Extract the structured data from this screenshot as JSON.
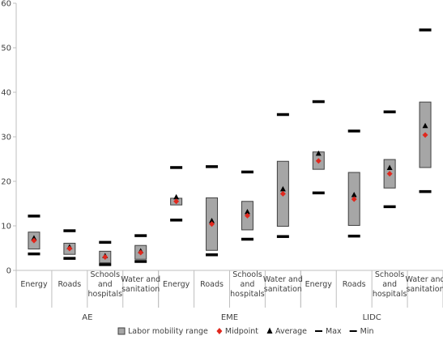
{
  "chart_data": {
    "type": "range-bar",
    "title": "",
    "xlabel": "",
    "ylabel": "",
    "ylim": [
      0,
      60
    ],
    "yticks": [
      "0",
      "10",
      "20",
      "30",
      "40",
      "50",
      "60"
    ],
    "grid": false,
    "legend_position": "bottom",
    "groups": [
      {
        "label": "AE",
        "categories": [
          {
            "label": [
              "Energy"
            ],
            "range": [
              4.8,
              8.6
            ],
            "midpoint": 6.7,
            "average": 7.2,
            "max": 12.2,
            "min": 3.7
          },
          {
            "label": [
              "Roads"
            ],
            "range": [
              3.6,
              6.1
            ],
            "midpoint": 4.9,
            "average": 5.2,
            "max": 8.9,
            "min": 2.7
          },
          {
            "label": [
              "Schools",
              "and",
              "hospitals"
            ],
            "range": [
              1.7,
              4.3
            ],
            "midpoint": 3.0,
            "average": 3.2,
            "max": 6.3,
            "min": 1.3
          },
          {
            "label": [
              "Water and",
              "sanitation"
            ],
            "range": [
              2.5,
              5.6
            ],
            "midpoint": 4.0,
            "average": 4.3,
            "max": 7.8,
            "min": 2.0
          }
        ]
      },
      {
        "label": "EME",
        "categories": [
          {
            "label": [
              "Energy"
            ],
            "range": [
              14.7,
              16.2
            ],
            "midpoint": 15.5,
            "average": 16.4,
            "max": 23.1,
            "min": 11.3
          },
          {
            "label": [
              "Roads"
            ],
            "range": [
              4.5,
              16.3
            ],
            "midpoint": 10.4,
            "average": 11.1,
            "max": 23.3,
            "min": 3.5
          },
          {
            "label": [
              "Schools",
              "and",
              "hospitals"
            ],
            "range": [
              9.1,
              15.5
            ],
            "midpoint": 12.3,
            "average": 13.1,
            "max": 22.1,
            "min": 7.0
          },
          {
            "label": [
              "Water and",
              "sanitation"
            ],
            "range": [
              9.9,
              24.5
            ],
            "midpoint": 17.2,
            "average": 18.2,
            "max": 35.0,
            "min": 7.6
          }
        ]
      },
      {
        "label": "LIDC",
        "categories": [
          {
            "label": [
              "Energy"
            ],
            "range": [
              22.7,
              26.6
            ],
            "midpoint": 24.6,
            "average": 26.2,
            "max": 37.9,
            "min": 17.4
          },
          {
            "label": [
              "Roads"
            ],
            "range": [
              10.1,
              22.0
            ],
            "midpoint": 16.0,
            "average": 16.9,
            "max": 31.3,
            "min": 7.7
          },
          {
            "label": [
              "Schools",
              "and",
              "hospitals"
            ],
            "range": [
              18.5,
              24.9
            ],
            "midpoint": 21.7,
            "average": 23.0,
            "max": 35.6,
            "min": 14.3
          },
          {
            "label": [
              "Water and",
              "sanitation"
            ],
            "range": [
              23.1,
              37.8
            ],
            "midpoint": 30.4,
            "average": 32.4,
            "max": 54.0,
            "min": 17.7
          }
        ]
      }
    ],
    "legend": [
      {
        "key": "range",
        "label": "Labor mobility range"
      },
      {
        "key": "midpoint",
        "label": "Midpoint"
      },
      {
        "key": "average",
        "label": "Average"
      },
      {
        "key": "max",
        "label": "Max"
      },
      {
        "key": "min",
        "label": "Min"
      }
    ],
    "colors": {
      "range_fill": "#a6a6a6",
      "range_stroke": "#404040",
      "midpoint": "#e0281e",
      "average": "#000000",
      "maxmin": "#000000",
      "axis": "#bfbfbf",
      "text": "#404040"
    }
  }
}
